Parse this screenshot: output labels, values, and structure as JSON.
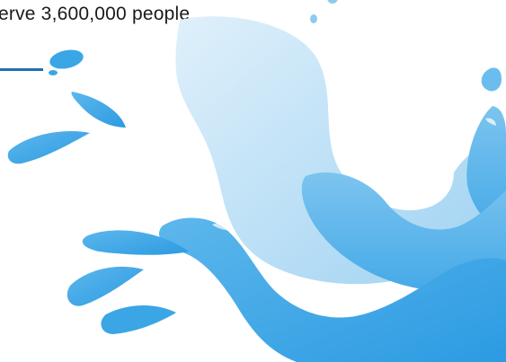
{
  "slide": {
    "headline": "erve 3,600,000 people"
  },
  "colors": {
    "accent_line": "#1f6fb5",
    "water_light": "#cfe8f7",
    "water_mid": "#8fcaef",
    "water_dark": "#3aa6e6",
    "text": "#1a1a1a"
  },
  "graphic": {
    "icon": "water-splash-illustration"
  }
}
